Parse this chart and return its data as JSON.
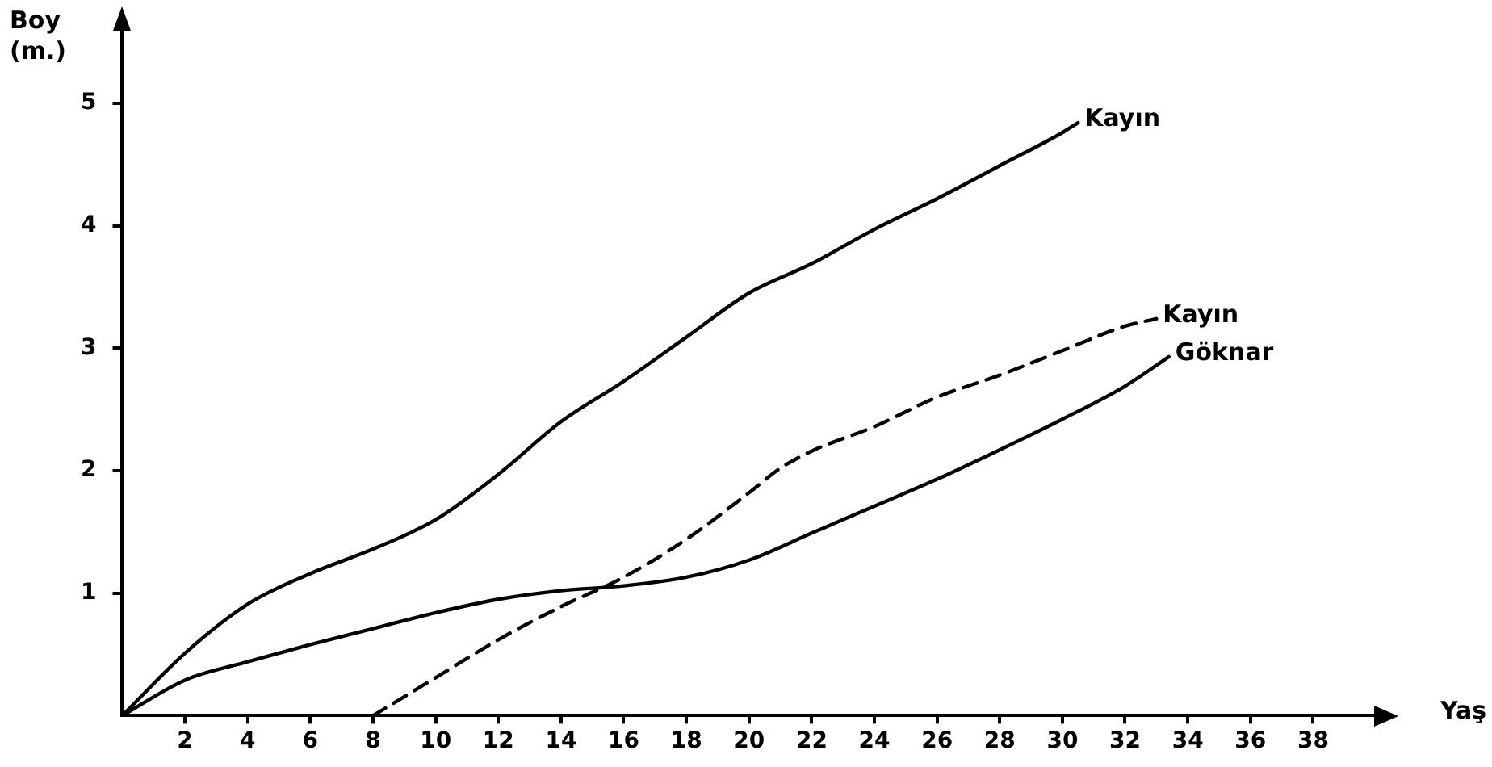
{
  "chart_data": {
    "type": "line",
    "xlabel": "Yaş",
    "ylabel": "Boy (m.)",
    "xlim": [
      0,
      40
    ],
    "xticks": [
      2,
      4,
      6,
      8,
      10,
      12,
      14,
      16,
      18,
      20,
      22,
      24,
      26,
      28,
      30,
      32,
      34,
      36,
      38
    ],
    "ylim": [
      0,
      5.6
    ],
    "yticks": [
      1,
      2,
      3,
      4,
      5
    ],
    "grid": false,
    "legend": false,
    "marker": "none",
    "series": [
      {
        "name": "Kayın",
        "color": "#000000",
        "line_style": "solid",
        "x": [
          0,
          2,
          4,
          6,
          8,
          10,
          12,
          14,
          16,
          18,
          20,
          22,
          24,
          26,
          28,
          30,
          30.5
        ],
        "values": [
          0,
          0.51,
          0.91,
          1.16,
          1.36,
          1.6,
          1.97,
          2.4,
          2.73,
          3.09,
          3.45,
          3.69,
          3.97,
          4.22,
          4.49,
          4.76,
          4.84
        ]
      },
      {
        "name": "Kayın",
        "color": "#000000",
        "line_style": "dashed",
        "x": [
          8,
          10,
          12,
          14,
          16,
          18,
          20,
          21,
          22,
          24,
          26,
          28,
          30,
          32,
          33
        ],
        "values": [
          0,
          0.31,
          0.62,
          0.89,
          1.13,
          1.44,
          1.82,
          2.02,
          2.16,
          2.36,
          2.6,
          2.78,
          2.98,
          3.18,
          3.24
        ]
      },
      {
        "name": "Göknar",
        "color": "#000000",
        "line_style": "solid",
        "x": [
          0,
          2,
          4,
          6,
          8,
          10,
          12,
          14,
          16,
          18,
          20,
          22,
          24,
          26,
          28,
          30,
          32,
          33.4
        ],
        "values": [
          0,
          0.29,
          0.44,
          0.58,
          0.71,
          0.84,
          0.95,
          1.02,
          1.06,
          1.13,
          1.27,
          1.49,
          1.71,
          1.93,
          2.17,
          2.42,
          2.69,
          2.93
        ]
      }
    ]
  }
}
